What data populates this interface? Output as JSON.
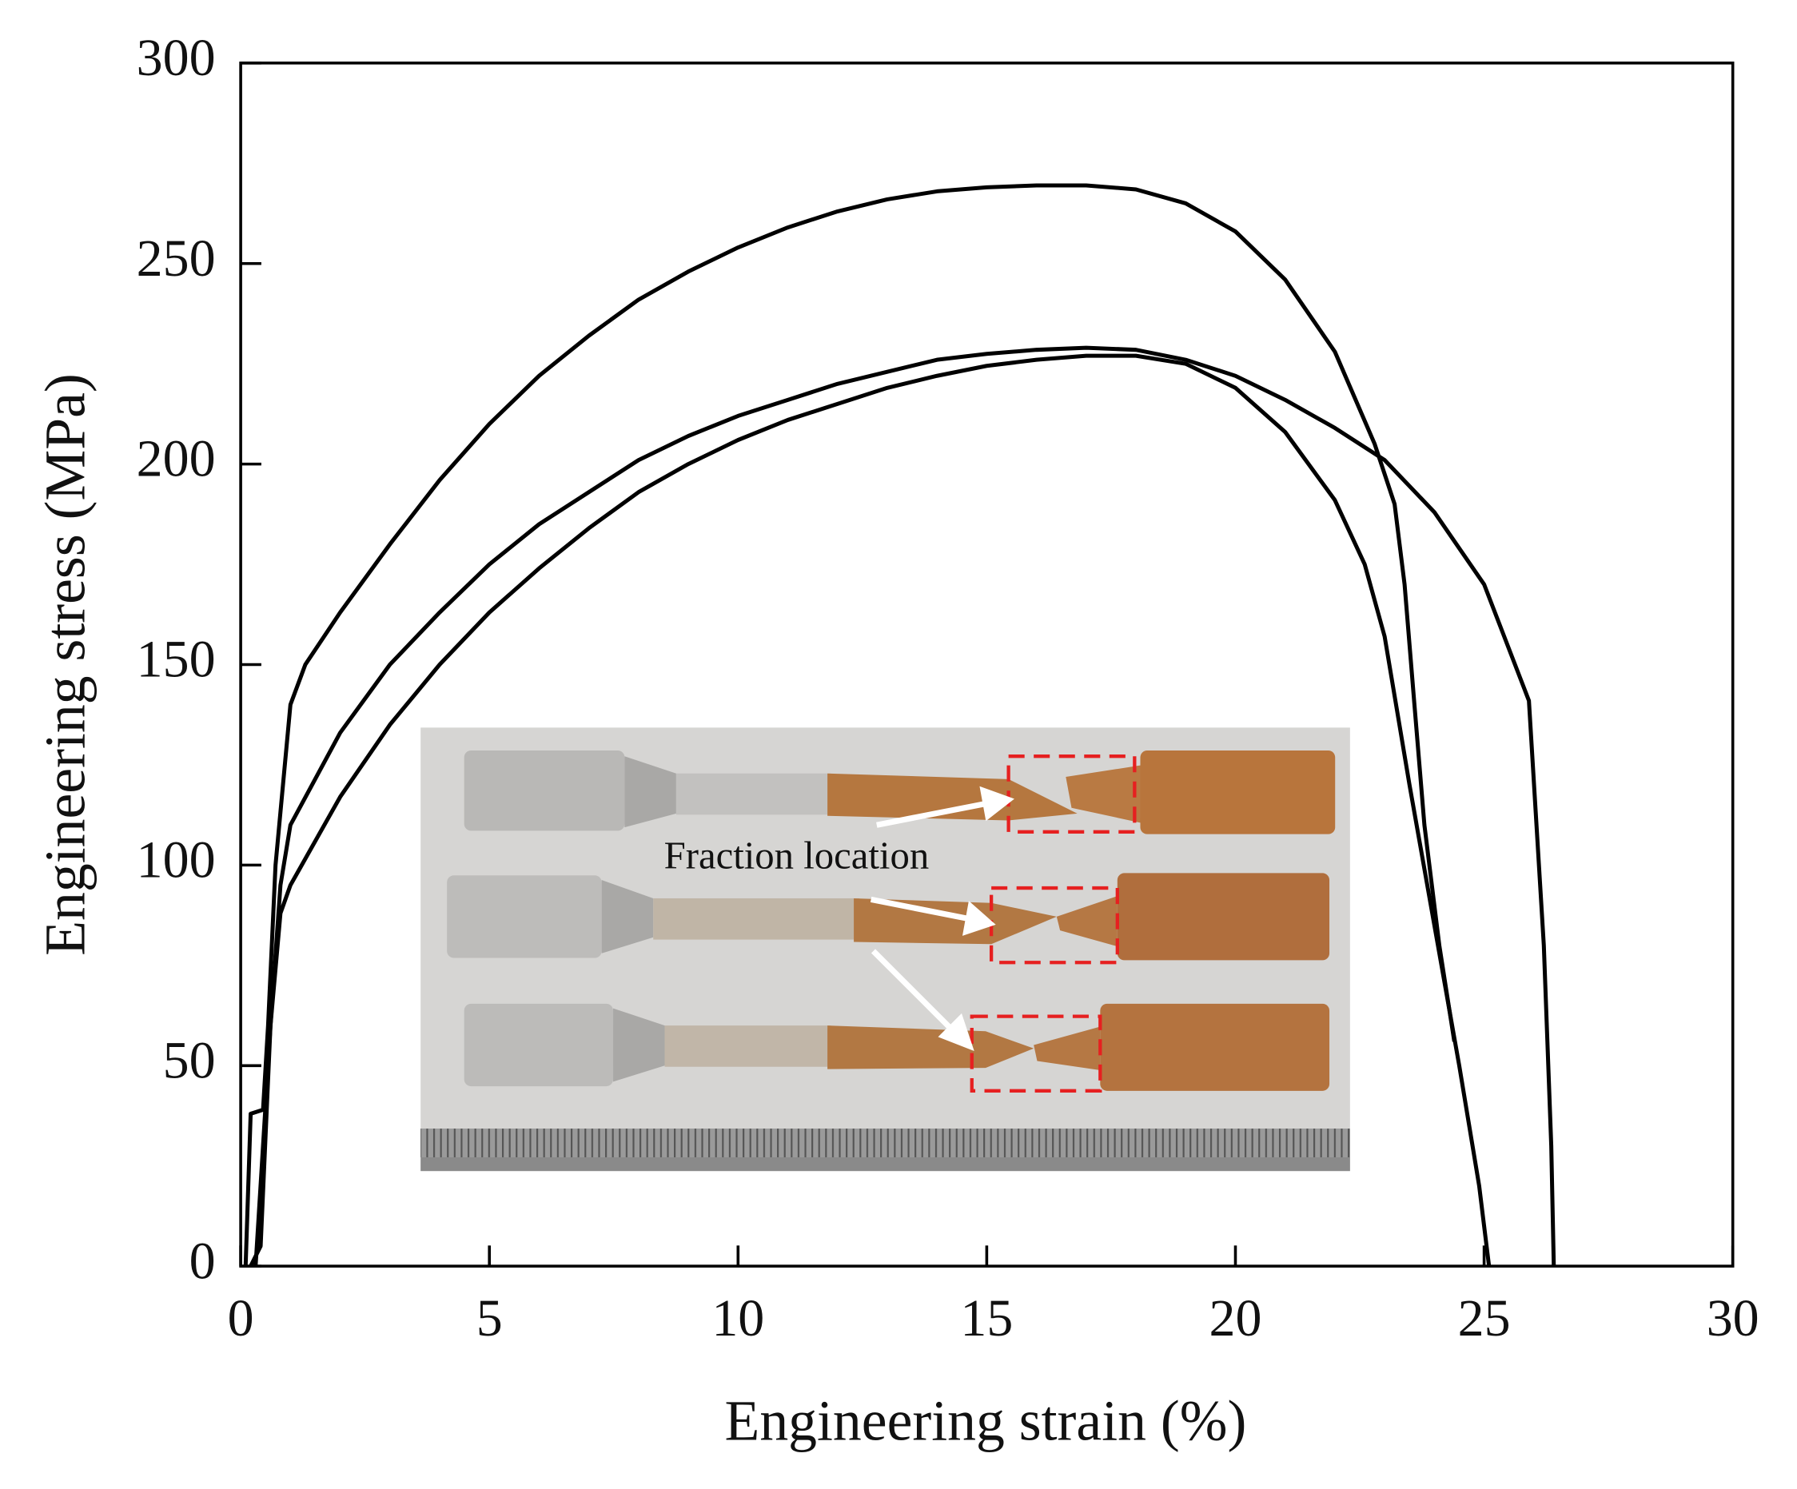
{
  "chart_data": {
    "type": "line",
    "xlabel": "Engineering strain (%)",
    "ylabel": "Engineering stress (MPa)",
    "annotation": "Fraction location",
    "xlim": [
      0,
      30
    ],
    "xticks": [
      0,
      5,
      10,
      15,
      20,
      25,
      30
    ],
    "ylim": [
      0,
      300
    ],
    "yticks": [
      0,
      50,
      100,
      150,
      200,
      250,
      300
    ],
    "grid": false,
    "series": [
      {
        "color": "#000000",
        "x": [
          0.1,
          0.2,
          0.45,
          0.55,
          0.7,
          1.0,
          1.3,
          2,
          3,
          4,
          5,
          6,
          7,
          8,
          9,
          10,
          11,
          12,
          13,
          14,
          15,
          16,
          17,
          18,
          19,
          20,
          21,
          22,
          22.8,
          23.2,
          23.4,
          23.6,
          23.8,
          24.1,
          24.4
        ],
        "values": [
          0,
          38,
          39,
          60,
          100,
          140,
          150,
          163,
          180,
          196,
          210,
          222,
          232,
          241,
          248,
          254,
          259,
          263,
          266,
          268,
          269,
          269.5,
          269.5,
          268.5,
          265,
          258,
          246,
          228,
          205,
          190,
          170,
          140,
          110,
          80,
          56
        ]
      },
      {
        "color": "#000000",
        "x": [
          0.3,
          0.6,
          0.8,
          1,
          2,
          3,
          4,
          5,
          6,
          7,
          8,
          9,
          10,
          11,
          12,
          13,
          14,
          15,
          16,
          17,
          18,
          19,
          20,
          21,
          22,
          23,
          24,
          25,
          25.9,
          26.2,
          26.35,
          26.4
        ],
        "values": [
          0,
          60,
          95,
          110,
          133,
          150,
          163,
          175,
          185,
          193,
          201,
          207,
          212,
          216,
          220,
          223,
          226,
          227.5,
          228.5,
          229,
          228.5,
          226,
          222,
          216,
          209,
          201,
          188,
          170,
          141,
          80,
          30,
          0
        ]
      },
      {
        "color": "#000000",
        "x": [
          0.2,
          0.4,
          0.6,
          0.8,
          1,
          2,
          3,
          4,
          5,
          6,
          7,
          8,
          9,
          10,
          11,
          12,
          13,
          14,
          15,
          16,
          17,
          18,
          19,
          20,
          21,
          22,
          22.6,
          23,
          23.5,
          24,
          24.5,
          24.9,
          25.1
        ],
        "values": [
          0,
          5,
          60,
          88,
          95,
          117,
          135,
          150,
          163,
          174,
          184,
          193,
          200,
          206,
          211,
          215,
          219,
          222,
          224.5,
          226,
          227,
          227,
          225,
          219,
          208,
          191,
          175,
          157,
          120,
          85,
          50,
          20,
          0
        ]
      }
    ]
  }
}
